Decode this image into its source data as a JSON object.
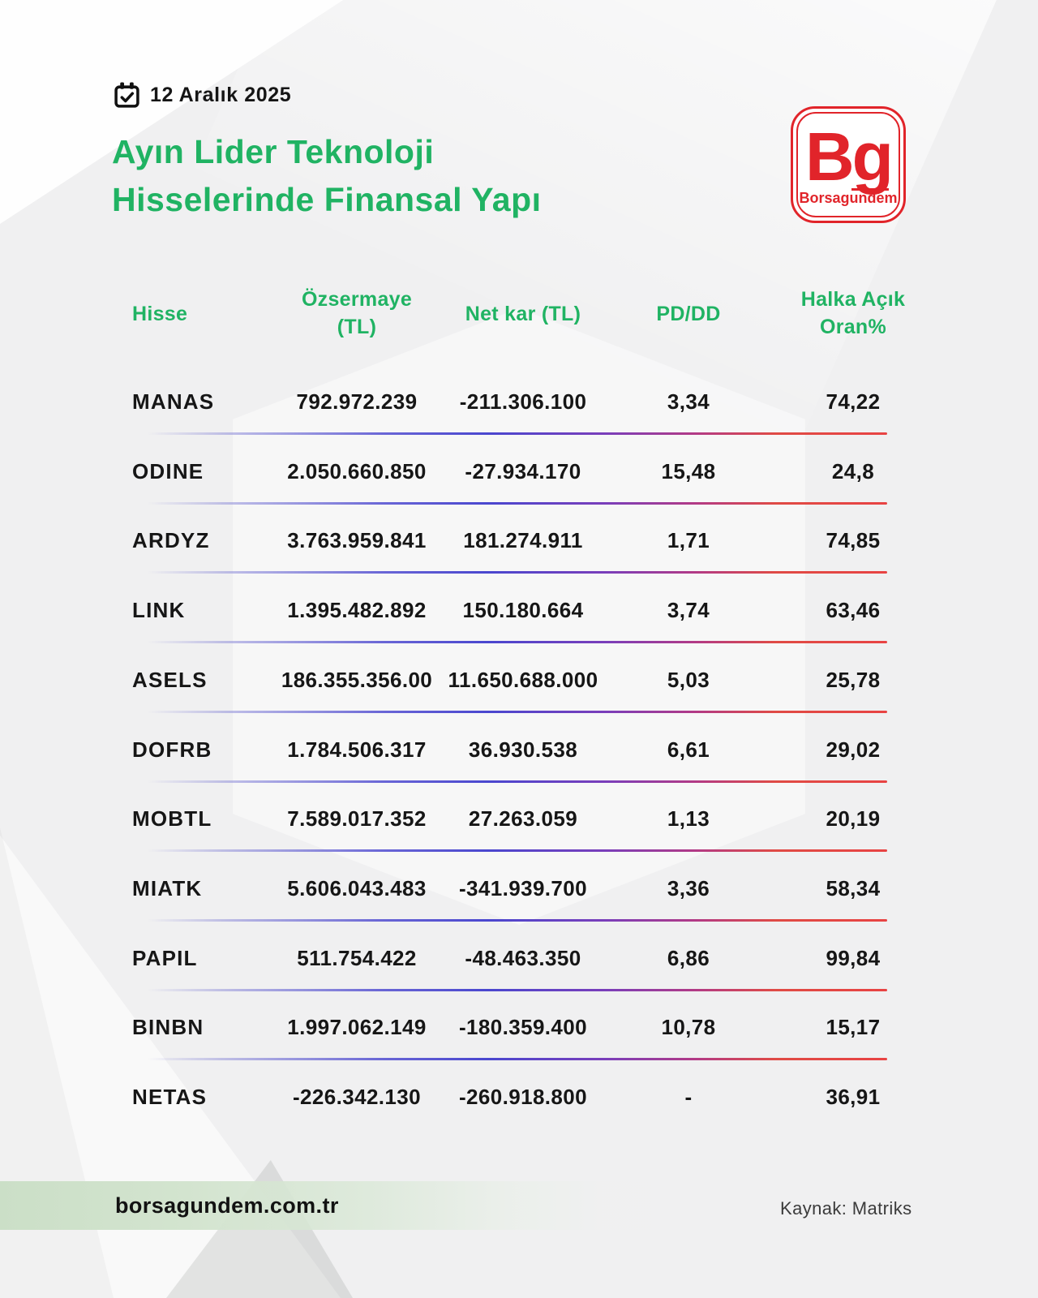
{
  "page": {
    "date": "12 Aralık 2025",
    "title_line1": "Ayın Lider Teknoloji",
    "title_line2": "Hisselerinde Finansal Yapı"
  },
  "logo": {
    "monogram": "Bg",
    "brand": "Borsagundem"
  },
  "table": {
    "headers": {
      "hisse": "Hisse",
      "ozsermaye_line1": "Özsermaye",
      "ozsermaye_line2": "(TL)",
      "netkar": "Net kar (TL)",
      "pddd": "PD/DD",
      "halka_line1": "Halka Açık",
      "halka_line2": "Oran%"
    },
    "rows": [
      {
        "ticker": "MANAS",
        "ozsermaye": "792.972.239",
        "netkar": "-211.306.100",
        "pddd": "3,34",
        "halka": "74,22"
      },
      {
        "ticker": "ODINE",
        "ozsermaye": "2.050.660.850",
        "netkar": "-27.934.170",
        "pddd": "15,48",
        "halka": "24,8"
      },
      {
        "ticker": "ARDYZ",
        "ozsermaye": "3.763.959.841",
        "netkar": "181.274.911",
        "pddd": "1,71",
        "halka": "74,85"
      },
      {
        "ticker": "LINK",
        "ozsermaye": "1.395.482.892",
        "netkar": "150.180.664",
        "pddd": "3,74",
        "halka": "63,46"
      },
      {
        "ticker": "ASELS",
        "ozsermaye": "186.355.356.00",
        "netkar": "11.650.688.000",
        "pddd": "5,03",
        "halka": "25,78"
      },
      {
        "ticker": "DOFRB",
        "ozsermaye": "1.784.506.317",
        "netkar": "36.930.538",
        "pddd": "6,61",
        "halka": "29,02"
      },
      {
        "ticker": "MOBTL",
        "ozsermaye": "7.589.017.352",
        "netkar": "27.263.059",
        "pddd": "1,13",
        "halka": "20,19"
      },
      {
        "ticker": "MIATK",
        "ozsermaye": "5.606.043.483",
        "netkar": "-341.939.700",
        "pddd": "3,36",
        "halka": "58,34"
      },
      {
        "ticker": "PAPIL",
        "ozsermaye": "511.754.422",
        "netkar": "-48.463.350",
        "pddd": "6,86",
        "halka": "99,84"
      },
      {
        "ticker": "BINBN",
        "ozsermaye": "1.997.062.149",
        "netkar": "-180.359.400",
        "pddd": "10,78",
        "halka": "15,17"
      },
      {
        "ticker": "NETAS",
        "ozsermaye": "-226.342.130",
        "netkar": "-260.918.800",
        "pddd": "-",
        "halka": "36,91"
      }
    ]
  },
  "footer": {
    "site": "borsagundem.com.tr",
    "source": "Kaynak:  Matriks"
  },
  "colors": {
    "green": "#20b363",
    "logo_red": "#e1242a",
    "text": "#161616",
    "separator_blue": "#4a47cf",
    "separator_purple": "#7a3eba",
    "separator_red": "#e84343",
    "footer_band_green": "#cbdfc7"
  },
  "chart_data": {
    "type": "table",
    "title": "Ayın Lider Teknoloji Hisselerinde Finansal Yapı",
    "date": "12 Aralık 2025",
    "source": "Matriks",
    "columns": [
      "Hisse",
      "Özsermaye (TL)",
      "Net kar (TL)",
      "PD/DD",
      "Halka Açık Oran%"
    ],
    "rows": [
      [
        "MANAS",
        "792.972.239",
        "-211.306.100",
        "3,34",
        "74,22"
      ],
      [
        "ODINE",
        "2.050.660.850",
        "-27.934.170",
        "15,48",
        "24,8"
      ],
      [
        "ARDYZ",
        "3.763.959.841",
        "181.274.911",
        "1,71",
        "74,85"
      ],
      [
        "LINK",
        "1.395.482.892",
        "150.180.664",
        "3,74",
        "63,46"
      ],
      [
        "ASELS",
        "186.355.356.00",
        "11.650.688.000",
        "5,03",
        "25,78"
      ],
      [
        "DOFRB",
        "1.784.506.317",
        "36.930.538",
        "6,61",
        "29,02"
      ],
      [
        "MOBTL",
        "7.589.017.352",
        "27.263.059",
        "1,13",
        "20,19"
      ],
      [
        "MIATK",
        "5.606.043.483",
        "-341.939.700",
        "3,36",
        "58,34"
      ],
      [
        "PAPIL",
        "511.754.422",
        "-48.463.350",
        "6,86",
        "99,84"
      ],
      [
        "BINBN",
        "1.997.062.149",
        "-180.359.400",
        "10,78",
        "15,17"
      ],
      [
        "NETAS",
        "-226.342.130",
        "-260.918.800",
        "-",
        "36,91"
      ]
    ]
  }
}
